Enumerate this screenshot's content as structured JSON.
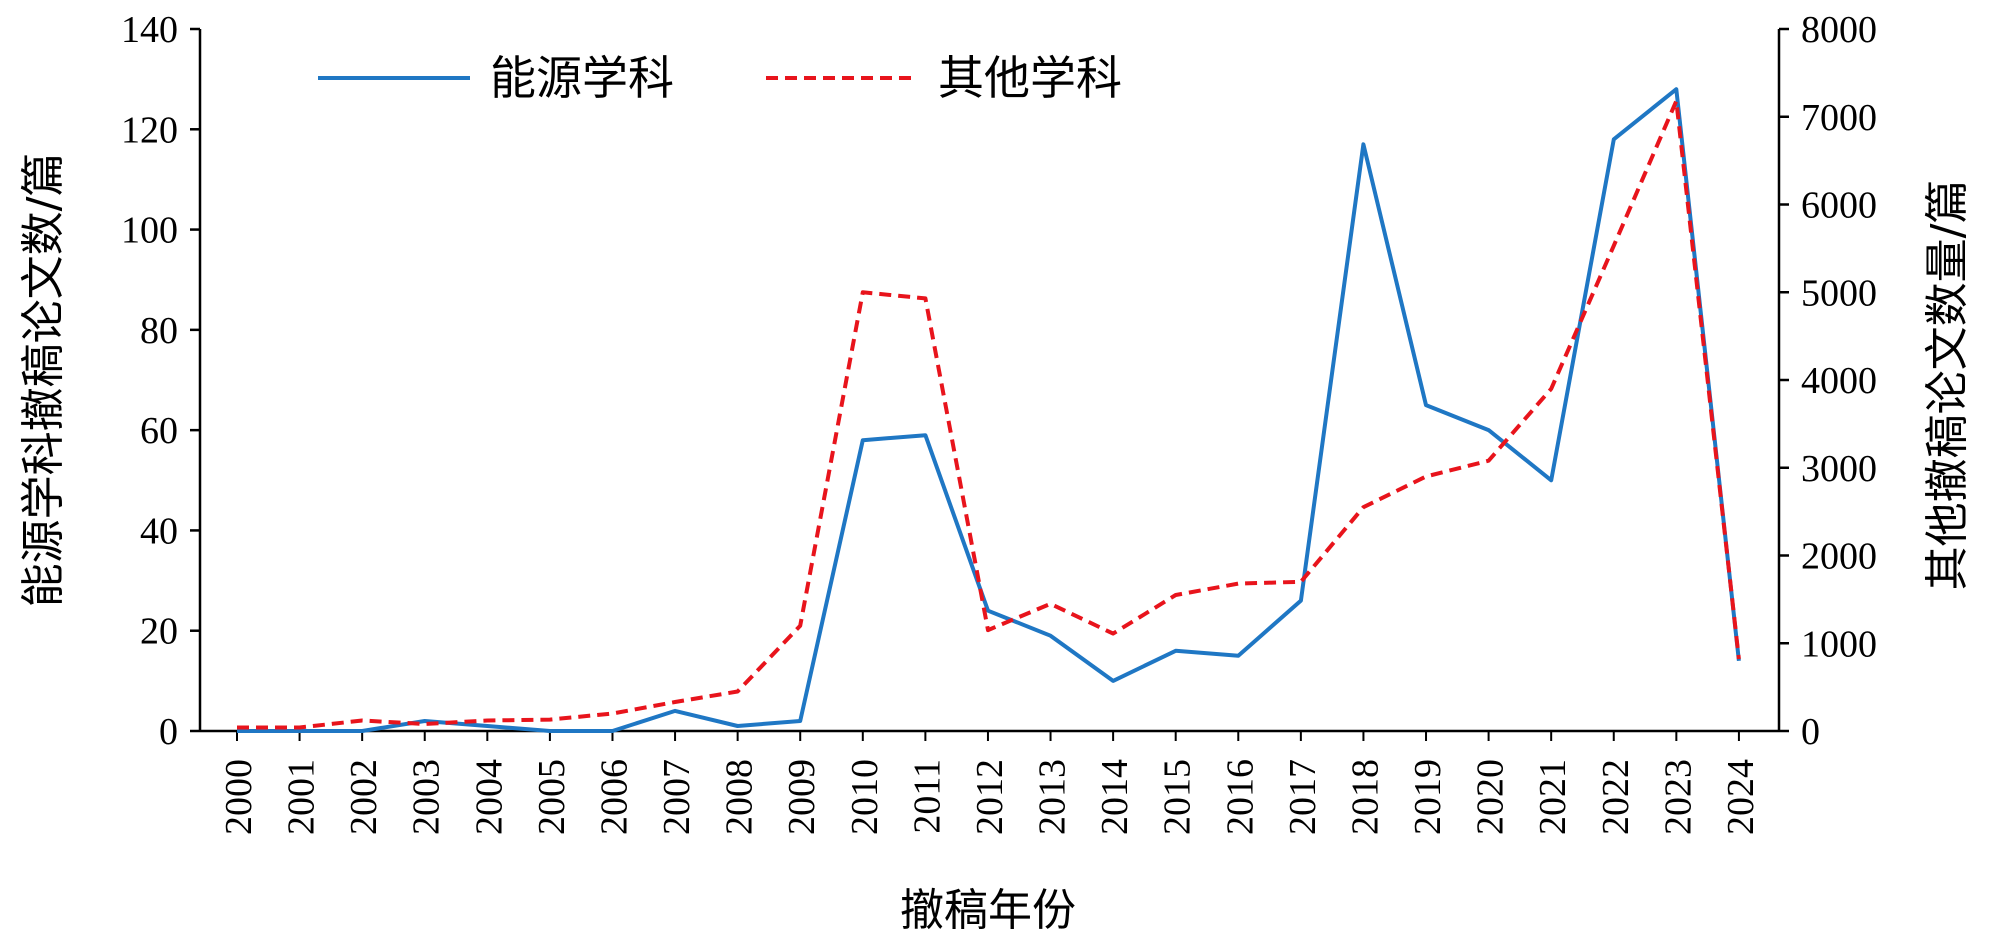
{
  "chart_data": {
    "type": "line",
    "title": "",
    "xlabel": "撤稿年份",
    "ylabel_left": "能源学科撤稿论文数/篇",
    "ylabel_right": "其他撤稿论文数量/篇",
    "x": [
      "2000",
      "2001",
      "2002",
      "2003",
      "2004",
      "2005",
      "2006",
      "2007",
      "2008",
      "2009",
      "2010",
      "2011",
      "2012",
      "2013",
      "2014",
      "2015",
      "2016",
      "2017",
      "2018",
      "2019",
      "2020",
      "2021",
      "2022",
      "2023",
      "2024"
    ],
    "y_left_ticks": [
      0,
      20,
      40,
      60,
      80,
      100,
      120,
      140
    ],
    "y_right_ticks": [
      0,
      1000,
      2000,
      3000,
      4000,
      5000,
      6000,
      7000,
      8000
    ],
    "ylim_left": [
      0,
      140
    ],
    "ylim_right": [
      0,
      8000
    ],
    "grid": false,
    "legend_position": "top-left",
    "series": [
      {
        "name": "能源学科",
        "axis": "left",
        "color": "#1f77c4",
        "style": "solid",
        "values": [
          0,
          0,
          0,
          2,
          1,
          0,
          0,
          4,
          1,
          2,
          58,
          59,
          24,
          19,
          10,
          16,
          15,
          26,
          117,
          65,
          60,
          50,
          118,
          128,
          14
        ]
      },
      {
        "name": "其他学科",
        "axis": "right",
        "color": "#e8141c",
        "style": "dashed",
        "values": [
          40,
          40,
          120,
          80,
          120,
          130,
          200,
          330,
          450,
          1200,
          5000,
          4930,
          1150,
          1450,
          1110,
          1550,
          1680,
          1700,
          2550,
          2900,
          3080,
          3900,
          5530,
          7180,
          820
        ]
      }
    ]
  }
}
